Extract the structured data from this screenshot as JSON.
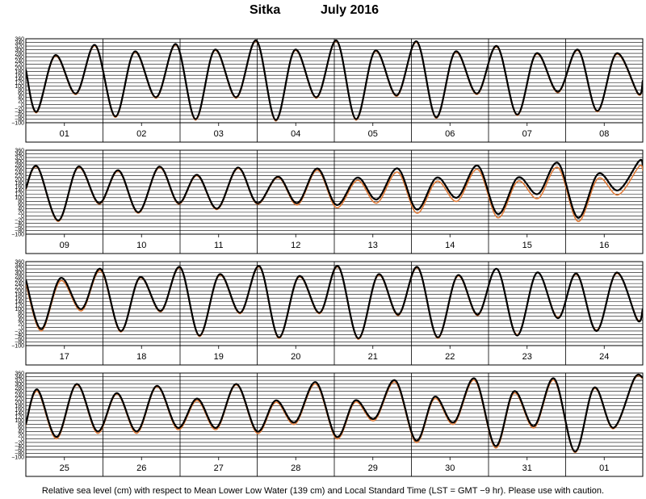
{
  "title": {
    "station": "Sitka",
    "month": "July   2016"
  },
  "caption": "Relative sea level (cm) with respect to Mean Lower Low Water (139 cm) and Local Standard Time (LST = GMT −9 hr). Please use with caution.",
  "colors": {
    "observed": "#000000",
    "predicted": "#e07b39",
    "grid": "#000000",
    "background": "#ffffff"
  },
  "chart_data": [
    {
      "type": "line",
      "xlabel": "",
      "ylabel": "",
      "ylim": [
        -100,
        360
      ],
      "yticks": [
        360,
        340,
        320,
        300,
        280,
        260,
        240,
        220,
        200,
        180,
        160,
        140,
        120,
        100,
        80,
        60,
        40,
        20,
        0,
        -20,
        -40,
        -60,
        -80,
        -100
      ],
      "x_unit": "day of July 2016, LST (day start at midnight)",
      "xlim": [
        1,
        9
      ],
      "categories": [
        "01",
        "02",
        "03",
        "04",
        "05",
        "06",
        "07",
        "08"
      ],
      "grid": true,
      "series": [
        {
          "style": "observed",
          "color": "#000000",
          "x": [
            1.0,
            1.14,
            1.38,
            1.65,
            1.9,
            2.16,
            2.41,
            2.69,
            2.95,
            3.2,
            3.45,
            3.73,
            3.99,
            4.24,
            4.49,
            4.77,
            5.03,
            5.28,
            5.53,
            5.81,
            6.07,
            6.32,
            6.57,
            6.85,
            7.11,
            7.37,
            7.62,
            7.9,
            8.16,
            8.41,
            8.66,
            8.94,
            9.0
          ],
          "y": [
            190,
            -40,
            270,
            60,
            325,
            -65,
            290,
            40,
            330,
            -80,
            300,
            40,
            350,
            -85,
            300,
            40,
            350,
            -80,
            295,
            50,
            345,
            -70,
            290,
            60,
            320,
            -55,
            280,
            70,
            300,
            -35,
            280,
            60,
            130
          ]
        },
        {
          "style": "predicted",
          "color": "#e07b39",
          "x": [
            1.0,
            1.14,
            1.38,
            1.65,
            1.9,
            2.16,
            2.41,
            2.69,
            2.95,
            3.2,
            3.45,
            3.73,
            3.99,
            4.24,
            4.49,
            4.77,
            5.03,
            5.28,
            5.53,
            5.81,
            6.07,
            6.32,
            6.57,
            6.85,
            7.11,
            7.37,
            7.62,
            7.9,
            8.16,
            8.41,
            8.66,
            8.94,
            9.0
          ],
          "y": [
            185,
            -45,
            265,
            55,
            320,
            -70,
            285,
            35,
            325,
            -85,
            295,
            35,
            345,
            -90,
            295,
            35,
            345,
            -85,
            290,
            45,
            340,
            -75,
            285,
            55,
            315,
            -60,
            275,
            65,
            295,
            -40,
            275,
            55,
            125
          ]
        }
      ]
    },
    {
      "type": "line",
      "xlabel": "",
      "ylabel": "",
      "ylim": [
        -100,
        360
      ],
      "yticks": [
        360,
        340,
        320,
        300,
        280,
        260,
        240,
        220,
        200,
        180,
        160,
        140,
        120,
        100,
        80,
        60,
        40,
        20,
        0,
        -20,
        -40,
        -60,
        -80,
        -100
      ],
      "x_unit": "day of July 2016, LST (day start at midnight)",
      "xlim": [
        9,
        17
      ],
      "categories": [
        "09",
        "10",
        "11",
        "12",
        "13",
        "14",
        "15",
        "16"
      ],
      "grid": true,
      "series": [
        {
          "style": "observed",
          "color": "#000000",
          "x": [
            9.0,
            9.15,
            9.42,
            9.68,
            9.95,
            10.2,
            10.46,
            10.73,
            10.98,
            11.22,
            11.48,
            11.75,
            12.0,
            12.27,
            12.52,
            12.78,
            13.03,
            13.3,
            13.55,
            13.82,
            14.07,
            14.33,
            14.59,
            14.86,
            15.12,
            15.38,
            15.64,
            15.9,
            16.16,
            16.42,
            16.68,
            16.95,
            17.0
          ],
          "y": [
            150,
            270,
            -25,
            270,
            70,
            250,
            20,
            270,
            70,
            225,
            40,
            265,
            70,
            215,
            70,
            260,
            60,
            210,
            90,
            260,
            35,
            210,
            100,
            275,
            10,
            210,
            120,
            290,
            -10,
            230,
            140,
            300,
            280
          ]
        },
        {
          "style": "predicted",
          "color": "#e07b39",
          "x": [
            9.0,
            9.15,
            9.42,
            9.68,
            9.95,
            10.2,
            10.46,
            10.73,
            10.98,
            11.22,
            11.48,
            11.75,
            12.0,
            12.27,
            12.52,
            12.78,
            13.03,
            13.3,
            13.55,
            13.82,
            14.07,
            14.33,
            14.59,
            14.86,
            15.12,
            15.38,
            15.64,
            15.9,
            16.16,
            16.42,
            16.68,
            16.95,
            17.0
          ],
          "y": [
            145,
            265,
            -30,
            265,
            65,
            245,
            15,
            265,
            65,
            220,
            35,
            260,
            65,
            210,
            60,
            250,
            45,
            195,
            70,
            240,
            15,
            190,
            80,
            255,
            -10,
            190,
            95,
            265,
            -30,
            205,
            115,
            270,
            250
          ]
        }
      ]
    },
    {
      "type": "line",
      "xlabel": "",
      "ylabel": "",
      "ylim": [
        -100,
        360
      ],
      "yticks": [
        360,
        340,
        320,
        300,
        280,
        260,
        240,
        220,
        200,
        180,
        160,
        140,
        120,
        100,
        80,
        60,
        40,
        20,
        0,
        -20,
        -40,
        -60,
        -80,
        -100
      ],
      "x_unit": "day of July 2016, LST (day start at midnight)",
      "xlim": [
        17,
        25
      ],
      "categories": [
        "17",
        "18",
        "19",
        "20",
        "21",
        "22",
        "23",
        "24"
      ],
      "grid": true,
      "series": [
        {
          "style": "observed",
          "color": "#000000",
          "x": [
            17.0,
            17.2,
            17.45,
            17.72,
            17.97,
            18.23,
            18.48,
            18.75,
            19.0,
            19.25,
            19.51,
            19.78,
            20.03,
            20.28,
            20.54,
            20.81,
            21.05,
            21.31,
            21.57,
            21.83,
            22.08,
            22.34,
            22.6,
            22.86,
            23.11,
            23.37,
            23.63,
            23.9,
            24.14,
            24.4,
            24.66,
            24.93,
            25.0
          ],
          "y": [
            260,
            -10,
            270,
            100,
            320,
            -20,
            275,
            90,
            330,
            -45,
            290,
            80,
            335,
            -55,
            280,
            80,
            335,
            -60,
            290,
            70,
            330,
            -55,
            285,
            70,
            320,
            -45,
            300,
            50,
            295,
            -20,
            300,
            40,
            100
          ]
        },
        {
          "style": "predicted",
          "color": "#e07b39",
          "x": [
            17.0,
            17.2,
            17.45,
            17.72,
            17.97,
            18.23,
            18.48,
            18.75,
            19.0,
            19.25,
            19.51,
            19.78,
            20.03,
            20.28,
            20.54,
            20.81,
            21.05,
            21.31,
            21.57,
            21.83,
            22.08,
            22.34,
            22.6,
            22.86,
            23.11,
            23.37,
            23.63,
            23.9,
            24.14,
            24.4,
            24.66,
            24.93,
            25.0
          ],
          "y": [
            240,
            -20,
            255,
            90,
            310,
            -25,
            270,
            85,
            325,
            -50,
            285,
            75,
            330,
            -60,
            275,
            75,
            330,
            -65,
            285,
            65,
            325,
            -60,
            280,
            65,
            320,
            -40,
            300,
            55,
            290,
            -15,
            295,
            45,
            95
          ]
        }
      ]
    },
    {
      "type": "line",
      "xlabel": "",
      "ylabel": "",
      "ylim": [
        -100,
        360
      ],
      "yticks": [
        360,
        340,
        320,
        300,
        280,
        260,
        240,
        220,
        200,
        180,
        160,
        140,
        120,
        100,
        80,
        60,
        40,
        20,
        0,
        -20,
        -40,
        -60,
        -80,
        -100
      ],
      "x_unit": "day of July 2016, LST (day start at midnight)",
      "xlim": [
        25,
        33
      ],
      "categories": [
        "25",
        "26",
        "27",
        "28",
        "29",
        "30",
        "31",
        "01"
      ],
      "grid": true,
      "series": [
        {
          "style": "observed",
          "color": "#000000",
          "x": [
            25.0,
            25.15,
            25.4,
            25.66,
            25.93,
            26.18,
            26.44,
            26.7,
            26.97,
            27.22,
            27.47,
            27.73,
            28.0,
            28.24,
            28.49,
            28.76,
            29.03,
            29.27,
            29.52,
            29.79,
            30.06,
            30.3,
            30.55,
            30.82,
            31.09,
            31.33,
            31.59,
            31.85,
            32.12,
            32.37,
            32.62,
            32.89,
            33.0
          ],
          "y": [
            80,
            270,
            10,
            300,
            40,
            250,
            40,
            290,
            60,
            220,
            60,
            300,
            40,
            210,
            90,
            310,
            10,
            210,
            110,
            320,
            -10,
            230,
            90,
            330,
            -40,
            260,
            70,
            330,
            -70,
            280,
            60,
            330,
            335
          ]
        },
        {
          "style": "predicted",
          "color": "#e07b39",
          "x": [
            25.0,
            25.15,
            25.4,
            25.66,
            25.93,
            26.18,
            26.44,
            26.7,
            26.97,
            27.22,
            27.47,
            27.73,
            28.0,
            28.24,
            28.49,
            28.76,
            29.03,
            29.27,
            29.52,
            29.79,
            30.06,
            30.3,
            30.55,
            30.82,
            31.09,
            31.33,
            31.59,
            31.85,
            32.12,
            32.37,
            32.62,
            32.89,
            33.0
          ],
          "y": [
            75,
            260,
            0,
            295,
            30,
            245,
            30,
            285,
            50,
            210,
            50,
            295,
            30,
            200,
            80,
            300,
            0,
            200,
            100,
            310,
            -20,
            220,
            80,
            320,
            -50,
            250,
            60,
            320,
            -75,
            275,
            55,
            325,
            330
          ]
        }
      ]
    }
  ]
}
